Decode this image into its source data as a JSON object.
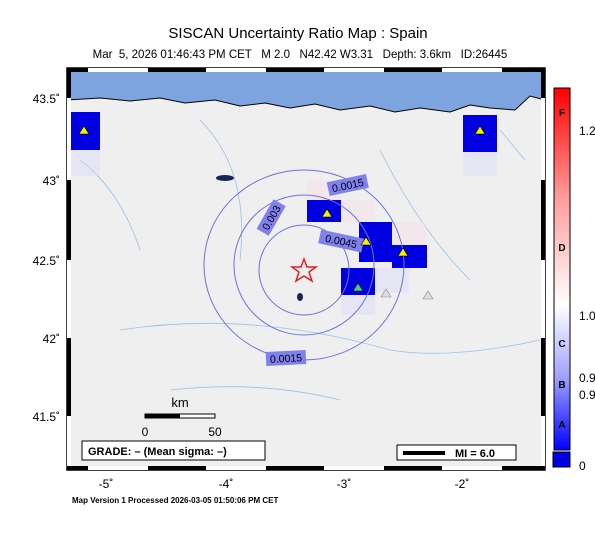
{
  "header": {
    "title": "SISCAN Uncertainty Ratio Map : Spain",
    "subtitle": "Mar  5, 2026 01:46:43 PM CET   M 2.0   N42.42 W3.31   Depth: 3.6km   ID:26445"
  },
  "map": {
    "lat_labels": [
      "43.5˚",
      "43˚",
      "42.5˚",
      "42˚",
      "41.5˚"
    ],
    "lon_labels": [
      "-5˚",
      "-4˚",
      "-3˚",
      "-2˚"
    ],
    "contour_labels": [
      "0.0015",
      "0.003",
      "0.0045",
      "0.0015"
    ],
    "scale": {
      "unit": "km",
      "start": "0",
      "end": "50"
    },
    "grade": "GRADE: – (Mean sigma: –)",
    "mi": "MI = 6.0"
  },
  "colorbar": {
    "letters": [
      "F",
      "D",
      "C",
      "B",
      "A"
    ],
    "values": [
      "1.2",
      "1.0",
      "0.9",
      "0.9",
      "0"
    ]
  },
  "footer": "Map Version 1 Processed 2026-03-05 01:50:06 PM CET"
}
